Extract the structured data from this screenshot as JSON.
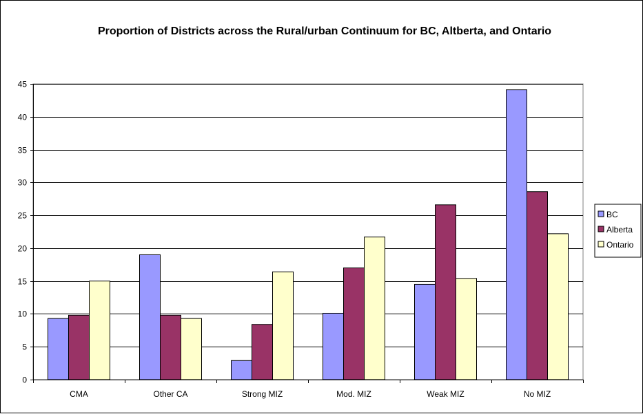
{
  "chart_data": {
    "type": "bar",
    "title": "Proportion of Districts across the Rural/urban Continuum for BC, Altberta, and Ontario",
    "xlabel": "",
    "ylabel": "",
    "ylim": [
      0,
      45
    ],
    "yticks": [
      0,
      5,
      10,
      15,
      20,
      25,
      30,
      35,
      40,
      45
    ],
    "categories": [
      "CMA",
      "Other CA",
      "Strong MIZ",
      "Mod. MIZ",
      "Weak MIZ",
      "No MIZ"
    ],
    "series": [
      {
        "name": "BC",
        "color": "#9999ff",
        "values": [
          9.3,
          19.0,
          2.9,
          10.1,
          14.5,
          44.1
        ]
      },
      {
        "name": "Alberta",
        "color": "#993366",
        "values": [
          9.8,
          9.8,
          8.4,
          17.0,
          26.6,
          28.6
        ]
      },
      {
        "name": "Ontario",
        "color": "#ffffcc",
        "values": [
          15.0,
          9.3,
          16.4,
          21.7,
          15.4,
          22.2
        ]
      }
    ],
    "grid": true,
    "legend": "right"
  }
}
